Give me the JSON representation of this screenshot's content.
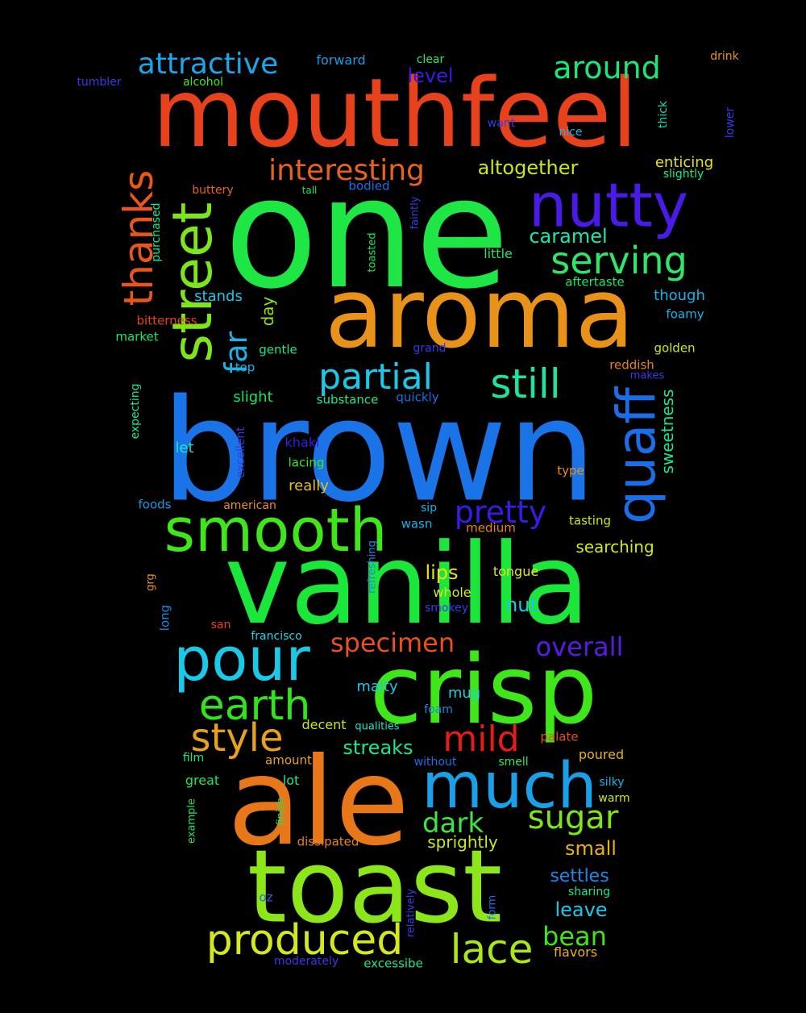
{
  "cloud": {
    "words": [
      {
        "text": "mouthfeel",
        "color": "#e8421c"
      },
      {
        "text": "one",
        "color": "#1de645"
      },
      {
        "text": "brown",
        "color": "#1a74e8"
      },
      {
        "text": "vanilla",
        "color": "#1be63a"
      },
      {
        "text": "aroma",
        "color": "#e8921a"
      },
      {
        "text": "ale",
        "color": "#e8771a"
      },
      {
        "text": "toast",
        "color": "#8ce61a"
      },
      {
        "text": "crisp",
        "color": "#3ee61a"
      },
      {
        "text": "nutty",
        "color": "#4a1ae8"
      },
      {
        "text": "street",
        "color": "#7de61a"
      },
      {
        "text": "smooth",
        "color": "#3ee61a"
      },
      {
        "text": "much",
        "color": "#1aa0e8"
      },
      {
        "text": "pour",
        "color": "#1ac8e8"
      },
      {
        "text": "quaff",
        "color": "#1a6ee8"
      },
      {
        "text": "produced",
        "color": "#d4e81a"
      },
      {
        "text": "thanks",
        "color": "#e8561a"
      },
      {
        "text": "lace",
        "color": "#a8e81a"
      },
      {
        "text": "earth",
        "color": "#2ee61a"
      },
      {
        "text": "serving",
        "color": "#2ee66a"
      },
      {
        "text": "partial",
        "color": "#1ac8e8"
      },
      {
        "text": "still",
        "color": "#1ae6a0"
      },
      {
        "text": "style",
        "color": "#e8a21a"
      },
      {
        "text": "mild",
        "color": "#e81a1a"
      },
      {
        "text": "around",
        "color": "#1ae67a"
      },
      {
        "text": "attractive",
        "color": "#1aa6e8"
      },
      {
        "text": "interesting",
        "color": "#e8621a"
      },
      {
        "text": "pretty",
        "color": "#3a1ae8"
      },
      {
        "text": "sugar",
        "color": "#7de61a"
      },
      {
        "text": "far",
        "color": "#1ab2e8"
      },
      {
        "text": "dark",
        "color": "#3ee63e"
      },
      {
        "text": "specimen",
        "color": "#e8521a"
      },
      {
        "text": "overall",
        "color": "#5a1ae8"
      },
      {
        "text": "bean",
        "color": "#3ee61a"
      },
      {
        "text": "lips",
        "color": "#e8e21a"
      },
      {
        "text": "caramel",
        "color": "#1ae6b0"
      },
      {
        "text": "altogether",
        "color": "#c8e81a"
      },
      {
        "text": "level",
        "color": "#3a1ae8"
      },
      {
        "text": "nut",
        "color": "#1ac8e8"
      },
      {
        "text": "streaks",
        "color": "#1ae68a"
      },
      {
        "text": "small",
        "color": "#e8b21a"
      },
      {
        "text": "leave",
        "color": "#1ac8e8"
      },
      {
        "text": "settles",
        "color": "#1a88e8"
      },
      {
        "text": "sweetness",
        "color": "#1ae68a"
      },
      {
        "text": "day",
        "color": "#8ce61a"
      },
      {
        "text": "searching",
        "color": "#d4e81a"
      },
      {
        "text": "sprightly",
        "color": "#c8e81a"
      },
      {
        "text": "slight",
        "color": "#1ae65a"
      },
      {
        "text": "stands",
        "color": "#1ac8e8"
      },
      {
        "text": "though",
        "color": "#1ab2e8"
      },
      {
        "text": "enticing",
        "color": "#e8e21a"
      },
      {
        "text": "really",
        "color": "#e8c21a"
      },
      {
        "text": "malty",
        "color": "#1ac8e8"
      },
      {
        "text": "mug",
        "color": "#1ad4e8"
      },
      {
        "text": "khaki",
        "color": "#3a1ae8"
      },
      {
        "text": "forward",
        "color": "#1a9ae8"
      },
      {
        "text": "clear",
        "color": "#2ee66a"
      },
      {
        "text": "drink",
        "color": "#e8921a"
      },
      {
        "text": "tumbler",
        "color": "#3a3ae8"
      },
      {
        "text": "alcohol",
        "color": "#3ee61a"
      },
      {
        "text": "thick",
        "color": "#1ad4b0"
      },
      {
        "text": "lower",
        "color": "#3a3ae8"
      },
      {
        "text": "want",
        "color": "#3a3ae8"
      },
      {
        "text": "nice",
        "color": "#1ab2e8"
      },
      {
        "text": "slightly",
        "color": "#1ae68a"
      },
      {
        "text": "buttery",
        "color": "#e8621a"
      },
      {
        "text": "tall",
        "color": "#1ae65a"
      },
      {
        "text": "bodied",
        "color": "#1a6ee8"
      },
      {
        "text": "faintly",
        "color": "#3a3ae8"
      },
      {
        "text": "purchased",
        "color": "#1ae68a"
      },
      {
        "text": "toasted",
        "color": "#1ae65a"
      },
      {
        "text": "little",
        "color": "#1ae66a"
      },
      {
        "text": "aftertaste",
        "color": "#1ae66a"
      },
      {
        "text": "foamy",
        "color": "#1ab2e8"
      },
      {
        "text": "bitterness",
        "color": "#e8421c"
      },
      {
        "text": "market",
        "color": "#1ae66a"
      },
      {
        "text": "gentle",
        "color": "#1ae68a"
      },
      {
        "text": "grand",
        "color": "#3a3ae8"
      },
      {
        "text": "golden",
        "color": "#c8e81a"
      },
      {
        "text": "top",
        "color": "#1ab2e8"
      },
      {
        "text": "reddish",
        "color": "#e8821a"
      },
      {
        "text": "makes",
        "color": "#3a3ae8"
      },
      {
        "text": "substance",
        "color": "#1ae68a"
      },
      {
        "text": "quickly",
        "color": "#1a6ee8"
      },
      {
        "text": "expecting",
        "color": "#1ae68a"
      },
      {
        "text": "excellent",
        "color": "#3a3ae8"
      },
      {
        "text": "let",
        "color": "#1ae6c8"
      },
      {
        "text": "lacing",
        "color": "#3ee61a"
      },
      {
        "text": "type",
        "color": "#e8921a"
      },
      {
        "text": "foods",
        "color": "#1a9ae8"
      },
      {
        "text": "american",
        "color": "#e8921a"
      },
      {
        "text": "sip",
        "color": "#1ab2e8"
      },
      {
        "text": "tasting",
        "color": "#c8e81a"
      },
      {
        "text": "wasn",
        "color": "#1ab2e8"
      },
      {
        "text": "medium",
        "color": "#e8821a"
      },
      {
        "text": "refreshing",
        "color": "#1a88e8"
      },
      {
        "text": "grg",
        "color": "#e8921a"
      },
      {
        "text": "tongue",
        "color": "#e8e21a"
      },
      {
        "text": "long",
        "color": "#1a88e8"
      },
      {
        "text": "whole",
        "color": "#d4e81a"
      },
      {
        "text": "smokey",
        "color": "#3a3ae8"
      },
      {
        "text": "san",
        "color": "#e8421c"
      },
      {
        "text": "francisco",
        "color": "#1ad4e8"
      },
      {
        "text": "decent",
        "color": "#c8e81a"
      },
      {
        "text": "qualities",
        "color": "#1ae6c8"
      },
      {
        "text": "foam",
        "color": "#1a88e8"
      },
      {
        "text": "palate",
        "color": "#e8521a"
      },
      {
        "text": "film",
        "color": "#1ae68a"
      },
      {
        "text": "amount",
        "color": "#e8a21a"
      },
      {
        "text": "without",
        "color": "#1a6ee8"
      },
      {
        "text": "smell",
        "color": "#2ee66a"
      },
      {
        "text": "poured",
        "color": "#e8b21a"
      },
      {
        "text": "great",
        "color": "#1ae65a"
      },
      {
        "text": "lot",
        "color": "#1ae68a"
      },
      {
        "text": "silky",
        "color": "#1ab2e8"
      },
      {
        "text": "example",
        "color": "#1ae65a"
      },
      {
        "text": "finish",
        "color": "#1ae65a"
      },
      {
        "text": "warm",
        "color": "#c8e81a"
      },
      {
        "text": "dissipated",
        "color": "#e8821a"
      },
      {
        "text": "oz",
        "color": "#1a6ee8"
      },
      {
        "text": "relatively",
        "color": "#3a3ae8"
      },
      {
        "text": "form",
        "color": "#1a6ee8"
      },
      {
        "text": "sharing",
        "color": "#1ae68a"
      },
      {
        "text": "moderately",
        "color": "#3a3ae8"
      },
      {
        "text": "excessibe",
        "color": "#1ae68a"
      },
      {
        "text": "flavors",
        "color": "#e8b21a"
      }
    ]
  }
}
